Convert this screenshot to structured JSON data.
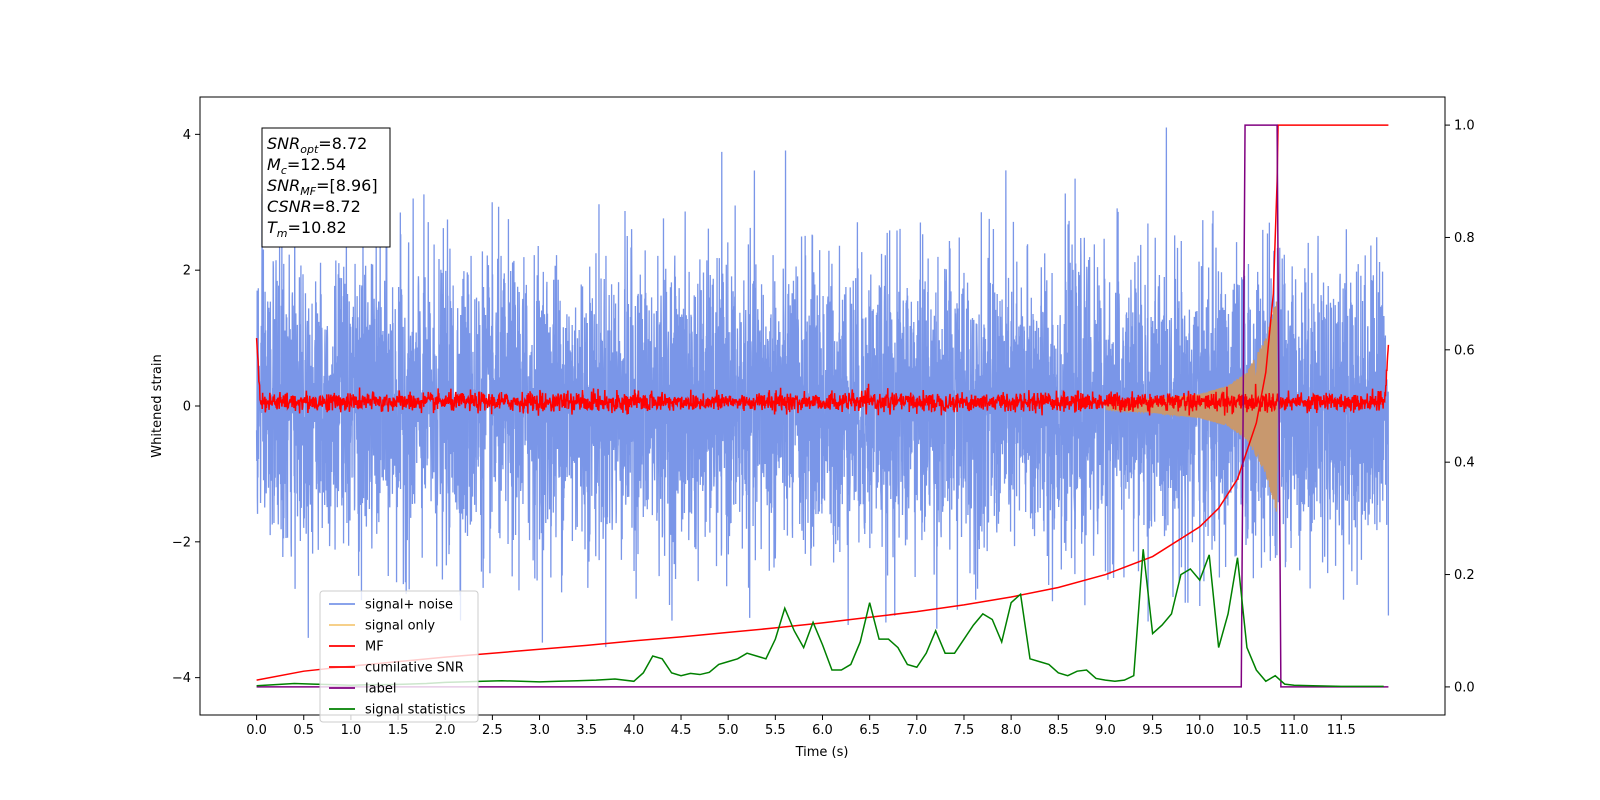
{
  "chart_data": {
    "type": "line",
    "xlabel": "Time (s)",
    "ylabel": "Whitened strain",
    "xlim": [
      -0.6,
      12.6
    ],
    "ylim": [
      -4.55,
      4.55
    ],
    "y2lim": [
      -0.05,
      1.05
    ],
    "xticks": [
      0.0,
      0.5,
      1.0,
      1.5,
      2.0,
      2.5,
      3.0,
      3.5,
      4.0,
      4.5,
      5.0,
      5.5,
      6.0,
      6.5,
      7.0,
      7.5,
      8.0,
      8.5,
      9.0,
      9.5,
      10.0,
      10.5,
      11.0,
      11.5
    ],
    "xtick_labels": [
      "0.0",
      "0.5",
      "1.0",
      "1.5",
      "2.0",
      "2.5",
      "3.0",
      "3.5",
      "4.0",
      "4.5",
      "5.0",
      "5.5",
      "6.0",
      "6.5",
      "7.0",
      "7.5",
      "8.0",
      "8.5",
      "9.0",
      "9.5",
      "10.0",
      "10.5",
      "11.0",
      "11.5"
    ],
    "yticks": [
      -4,
      -2,
      0,
      2,
      4
    ],
    "ytick_labels": [
      "−4",
      "−2",
      "0",
      "2",
      "4"
    ],
    "y2ticks": [
      0.0,
      0.2,
      0.4,
      0.6,
      0.8,
      1.0
    ],
    "y2tick_labels": [
      "0.0",
      "0.2",
      "0.4",
      "0.6",
      "0.8",
      "1.0"
    ],
    "grid": false,
    "legend_position": "bottom-left",
    "annotation": {
      "lines": [
        {
          "main": "SNR",
          "sub": "opt",
          "value": "=8.72"
        },
        {
          "main": "M",
          "sub": "c",
          "value": "=12.54"
        },
        {
          "main": "SNR",
          "sub": "MF",
          "value": "=[8.96]"
        },
        {
          "main": "CSNR",
          "sub": "",
          "value": "=8.72"
        },
        {
          "main": "T",
          "sub": "m",
          "value": "=10.82"
        }
      ]
    },
    "series": [
      {
        "name": "signal+ noise",
        "color": "#7a96e8",
        "axis": "left",
        "kind": "noise",
        "t_range": [
          0.0,
          12.0
        ],
        "amplitude_std": 1.0,
        "peak_range": [
          -4.15,
          4.1
        ]
      },
      {
        "name": "signal only",
        "color": "#f5c97a",
        "axis": "left",
        "kind": "chirp",
        "t_range": [
          9.0,
          10.82
        ],
        "envelope": [
          [
            9.0,
            0.05
          ],
          [
            9.5,
            0.1
          ],
          [
            10.0,
            0.18
          ],
          [
            10.3,
            0.3
          ],
          [
            10.5,
            0.5
          ],
          [
            10.7,
            1.0
          ],
          [
            10.82,
            1.6
          ]
        ]
      },
      {
        "name": "MF",
        "color": "#ff0000",
        "axis": "left",
        "kind": "mf",
        "t_range": [
          0.0,
          12.0
        ],
        "baseline": 0.0,
        "band": [
          -0.15,
          0.35
        ],
        "edges": [
          [
            0.0,
            1.0
          ],
          [
            12.0,
            0.9
          ]
        ]
      },
      {
        "name": "cumilative SNR",
        "color": "#ff0000",
        "axis": "right",
        "x": [
          0.0,
          0.5,
          1.0,
          1.5,
          2.0,
          2.5,
          3.0,
          3.5,
          4.0,
          4.5,
          5.0,
          5.5,
          6.0,
          6.5,
          7.0,
          7.5,
          8.0,
          8.5,
          9.0,
          9.5,
          10.0,
          10.2,
          10.4,
          10.6,
          10.7,
          10.78,
          10.82,
          10.83,
          12.0
        ],
        "y": [
          0.012,
          0.028,
          0.037,
          0.045,
          0.053,
          0.06,
          0.067,
          0.074,
          0.082,
          0.089,
          0.097,
          0.105,
          0.114,
          0.124,
          0.134,
          0.146,
          0.16,
          0.177,
          0.2,
          0.232,
          0.285,
          0.318,
          0.37,
          0.47,
          0.56,
          0.7,
          0.9,
          1.0,
          1.0
        ]
      },
      {
        "name": "label",
        "color": "#800080",
        "axis": "right",
        "x": [
          0.0,
          10.44,
          10.48,
          10.82,
          10.86,
          12.0
        ],
        "y": [
          0.0,
          0.0,
          1.0,
          1.0,
          0.0,
          0.0
        ]
      },
      {
        "name": "signal statistics",
        "color": "#008000",
        "axis": "right",
        "x": [
          0.0,
          0.2,
          0.4,
          0.6,
          0.8,
          1.0,
          1.2,
          1.4,
          1.6,
          1.8,
          2.0,
          2.2,
          2.4,
          2.6,
          2.8,
          3.0,
          3.2,
          3.4,
          3.6,
          3.8,
          4.0,
          4.1,
          4.2,
          4.3,
          4.4,
          4.5,
          4.6,
          4.7,
          4.8,
          4.9,
          5.0,
          5.1,
          5.2,
          5.3,
          5.4,
          5.5,
          5.6,
          5.7,
          5.8,
          5.9,
          6.0,
          6.1,
          6.2,
          6.3,
          6.4,
          6.5,
          6.6,
          6.7,
          6.8,
          6.9,
          7.0,
          7.1,
          7.2,
          7.3,
          7.4,
          7.5,
          7.6,
          7.7,
          7.8,
          7.9,
          8.0,
          8.1,
          8.2,
          8.3,
          8.4,
          8.5,
          8.6,
          8.7,
          8.8,
          8.9,
          9.0,
          9.1,
          9.2,
          9.3,
          9.4,
          9.5,
          9.6,
          9.7,
          9.8,
          9.9,
          10.0,
          10.1,
          10.2,
          10.3,
          10.4,
          10.5,
          10.6,
          10.7,
          10.8,
          10.9,
          11.0,
          11.2,
          11.5,
          11.8,
          11.95
        ],
        "y": [
          0.002,
          0.004,
          0.006,
          0.005,
          0.004,
          0.003,
          0.004,
          0.004,
          0.005,
          0.006,
          0.008,
          0.009,
          0.01,
          0.011,
          0.01,
          0.009,
          0.01,
          0.011,
          0.012,
          0.014,
          0.01,
          0.025,
          0.055,
          0.05,
          0.025,
          0.02,
          0.024,
          0.022,
          0.026,
          0.04,
          0.045,
          0.05,
          0.06,
          0.055,
          0.05,
          0.085,
          0.14,
          0.1,
          0.07,
          0.115,
          0.075,
          0.03,
          0.03,
          0.04,
          0.08,
          0.15,
          0.085,
          0.085,
          0.07,
          0.04,
          0.035,
          0.06,
          0.1,
          0.06,
          0.06,
          0.085,
          0.11,
          0.13,
          0.12,
          0.08,
          0.15,
          0.165,
          0.05,
          0.045,
          0.04,
          0.025,
          0.02,
          0.028,
          0.03,
          0.015,
          0.012,
          0.01,
          0.012,
          0.02,
          0.245,
          0.095,
          0.11,
          0.13,
          0.2,
          0.21,
          0.19,
          0.235,
          0.07,
          0.13,
          0.23,
          0.07,
          0.03,
          0.01,
          0.02,
          0.005,
          0.003,
          0.002,
          0.001,
          0.001,
          0.001
        ]
      }
    ]
  }
}
